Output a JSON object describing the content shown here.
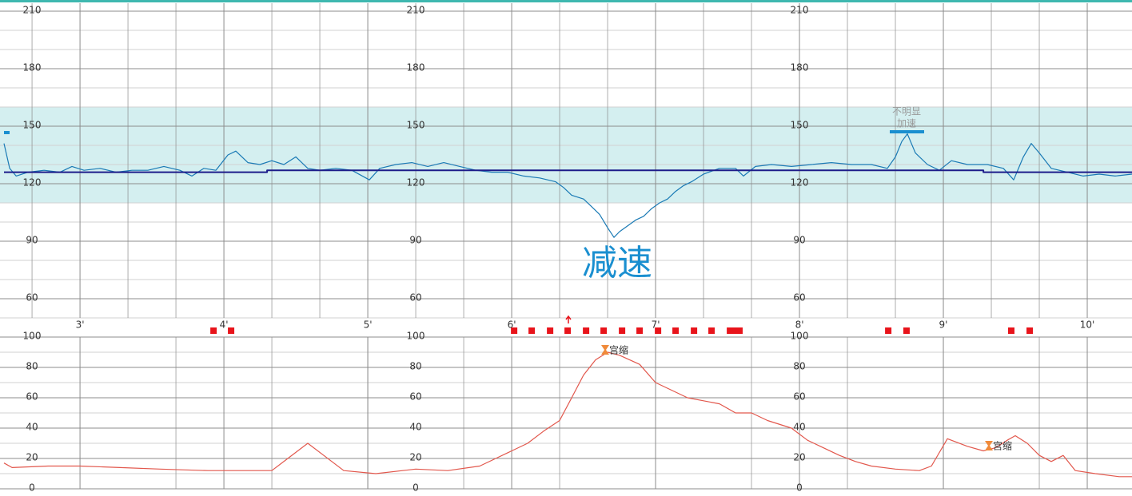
{
  "chart_data": [
    {
      "type": "line",
      "xlim": [
        2.444,
        10.311
      ],
      "xticks": [
        {
          "value": 3,
          "label": "3'"
        },
        {
          "value": 4,
          "label": "4'"
        },
        {
          "value": 5,
          "label": "5'"
        },
        {
          "value": 6,
          "label": "6'"
        },
        {
          "value": 7,
          "label": "7'"
        },
        {
          "value": 8,
          "label": "8'"
        },
        {
          "value": 9,
          "label": "9'"
        },
        {
          "value": 10,
          "label": "10'"
        }
      ],
      "ylim": [
        50,
        210
      ],
      "yticks": [
        60,
        90,
        120,
        150,
        180,
        210
      ],
      "normal_band": [
        110,
        160
      ],
      "series": [
        {
          "color": "#1a7ab5",
          "x": [
            2.472,
            2.511,
            2.556,
            2.639,
            2.75,
            2.861,
            2.944,
            3.028,
            3.139,
            3.25,
            3.361,
            3.472,
            3.583,
            3.694,
            3.778,
            3.861,
            3.944,
            4.028,
            4.083,
            4.167,
            4.25,
            4.333,
            4.417,
            4.5,
            4.583,
            4.667,
            4.778,
            4.889,
            5.011,
            5.083,
            5.194,
            5.306,
            5.417,
            5.528,
            5.639,
            5.75,
            5.861,
            5.972,
            6.083,
            6.194,
            6.306,
            6.361,
            6.417,
            6.5,
            6.556,
            6.611,
            6.667,
            6.711,
            6.75,
            6.806,
            6.861,
            6.917,
            6.972,
            7.028,
            7.083,
            7.139,
            7.194,
            7.25,
            7.333,
            7.444,
            7.556,
            7.611,
            7.694,
            7.806,
            7.944,
            8.083,
            8.222,
            8.361,
            8.5,
            8.611,
            8.667,
            8.711,
            8.75,
            8.806,
            8.889,
            8.972,
            9.056,
            9.167,
            9.306,
            9.417,
            9.489,
            9.556,
            9.611,
            9.667,
            9.75,
            9.861,
            9.972,
            10.083,
            10.194,
            10.311
          ],
          "values": [
            141,
            128,
            124,
            126,
            127,
            126,
            129,
            127,
            128,
            126,
            127,
            127,
            129,
            127,
            124,
            128,
            127,
            135,
            137,
            131,
            130,
            132,
            130,
            134,
            128,
            127,
            128,
            127,
            122,
            128,
            130,
            131,
            129,
            131,
            129,
            127,
            126,
            126,
            124,
            123,
            121,
            118,
            114,
            112,
            108,
            104,
            97,
            92,
            95,
            98,
            101,
            103,
            107,
            110,
            112,
            116,
            119,
            121,
            125,
            128,
            128,
            124,
            129,
            130,
            129,
            130,
            131,
            130,
            130,
            128,
            134,
            142,
            146,
            136,
            130,
            127,
            132,
            130,
            130,
            128,
            122,
            134,
            141,
            136,
            128,
            126,
            124,
            125,
            124,
            125
          ]
        },
        {
          "color": "#1c1c8a",
          "x": [
            2.472,
            4.3,
            4.3,
            9.278,
            9.278,
            10.311
          ],
          "values": [
            126,
            126,
            127,
            127,
            126,
            126
          ]
        }
      ],
      "movements": [
        3.928,
        4.05,
        6.017,
        6.139,
        6.267,
        6.389,
        6.517,
        6.639,
        6.767,
        6.889,
        7.017,
        7.139,
        7.267,
        7.389,
        7.517,
        7.556,
        7.583,
        8.617,
        8.744,
        9.472,
        9.6
      ],
      "movement_color": "#e8141b",
      "annotations": [
        "减速",
        "不明显",
        "加速"
      ]
    },
    {
      "type": "line",
      "xlim": [
        2.444,
        10.311
      ],
      "ylim": [
        0,
        100
      ],
      "yticks": [
        0,
        20,
        40,
        60,
        80,
        100
      ],
      "series": [
        {
          "color": "#e2574c",
          "x": [
            2.472,
            2.528,
            2.778,
            3.0,
            3.278,
            3.556,
            3.889,
            4.333,
            4.444,
            4.583,
            4.694,
            4.833,
            5.056,
            5.333,
            5.556,
            5.778,
            5.889,
            6.0,
            6.111,
            6.222,
            6.333,
            6.417,
            6.5,
            6.583,
            6.667,
            6.75,
            6.889,
            7.0,
            7.111,
            7.222,
            7.333,
            7.444,
            7.556,
            7.667,
            7.778,
            7.944,
            8.056,
            8.167,
            8.278,
            8.389,
            8.5,
            8.667,
            8.833,
            8.917,
            9.028,
            9.167,
            9.278,
            9.361,
            9.444,
            9.5,
            9.583,
            9.667,
            9.75,
            9.833,
            9.917,
            10.056,
            10.222,
            10.311
          ],
          "values": [
            17,
            14,
            15,
            15,
            14,
            13,
            12,
            12,
            20,
            30,
            22,
            12,
            10,
            13,
            12,
            15,
            20,
            25,
            30,
            38,
            45,
            60,
            75,
            85,
            90,
            88,
            82,
            70,
            65,
            60,
            58,
            56,
            50,
            50,
            45,
            40,
            32,
            27,
            22,
            18,
            15,
            13,
            12,
            15,
            33,
            28,
            25,
            27,
            32,
            35,
            30,
            22,
            18,
            22,
            12,
            10,
            8,
            8
          ]
        }
      ],
      "annotations": [
        "宫缩",
        "宫缩"
      ]
    }
  ]
}
